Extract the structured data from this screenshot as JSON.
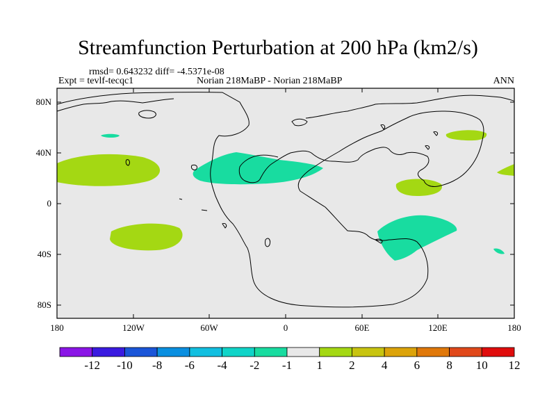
{
  "title": "Streamfunction Perturbation at 200 hPa (km2/s)",
  "stats_line": "rmsd= 0.643232 diff= -4.5371e-08",
  "expt_label": "Expt = tevlf-tecqc1",
  "period_label": "Norian 218MaBP - Norian 218MaBP",
  "season_label": "ANN",
  "lat_ticks": [
    "80N",
    "40N",
    "0",
    "40S",
    "80S"
  ],
  "lon_ticks": [
    "180",
    "120W",
    "60W",
    "0",
    "60E",
    "120E",
    "180"
  ],
  "colorbar": {
    "labels": [
      "-12",
      "-10",
      "-8",
      "-6",
      "-4",
      "-2",
      "-1",
      "1",
      "2",
      "4",
      "6",
      "8",
      "10",
      "12"
    ],
    "colors": [
      "#8a15e6",
      "#3a1ae0",
      "#1a55d8",
      "#0a8fe0",
      "#12bfe0",
      "#10d4c8",
      "#18dca0",
      "#e8e8e8",
      "#a4d813",
      "#c8c410",
      "#dca30a",
      "#e0780a",
      "#e0481a",
      "#e00c0c"
    ]
  },
  "colors": {
    "background": "#e8e8e8",
    "negative_fill": "#18dca0",
    "positive_fill": "#a4d813",
    "coast": "#000000"
  }
}
